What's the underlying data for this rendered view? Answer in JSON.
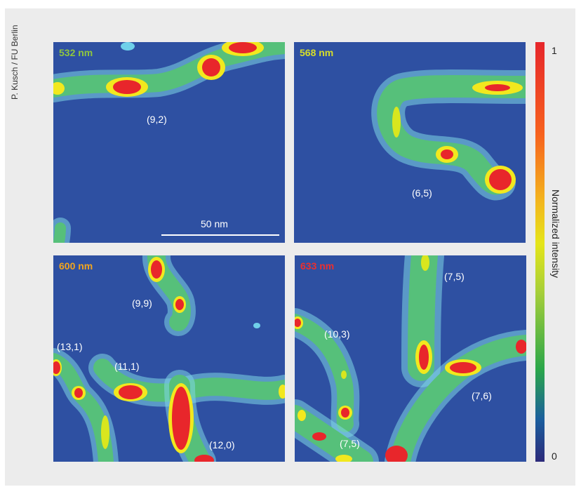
{
  "credit": "P. Kusch / FU Berlin",
  "colorbar": {
    "title": "Normalized intensity",
    "max_label": "1",
    "min_label": "0"
  },
  "colors": {
    "background": "#2e50a2",
    "high": "#e8262b",
    "mid": "#f2e81e",
    "low": "#56c07a"
  },
  "panels": [
    {
      "wavelength": "532 nm",
      "wavelength_color": "#8fc63f",
      "labels": [
        "(9,2)"
      ],
      "scalebar_label": "50 nm"
    },
    {
      "wavelength": "568 nm",
      "wavelength_color": "#d7de2a",
      "labels": [
        "(6,5)"
      ]
    },
    {
      "wavelength": "600 nm",
      "wavelength_color": "#f2a51e",
      "labels": [
        "(9,9)",
        "(13,1)",
        "(11,1)",
        "(12,0)"
      ]
    },
    {
      "wavelength": "633 nm",
      "wavelength_color": "#ea2f2f",
      "labels": [
        "(7,5)",
        "(10,3)",
        "(7,6)",
        "(7,5)"
      ]
    }
  ]
}
